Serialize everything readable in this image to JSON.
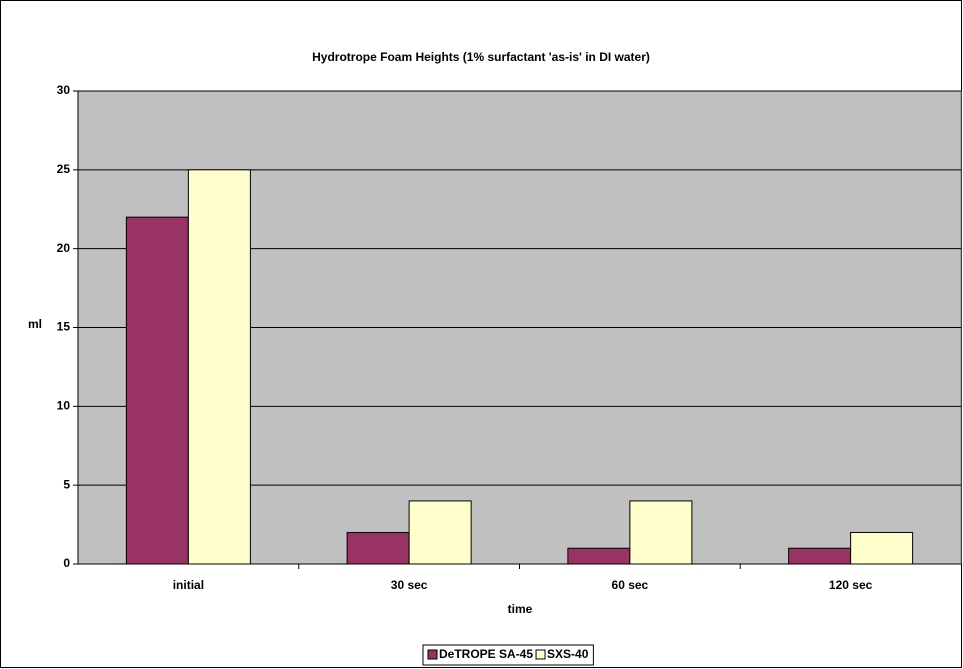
{
  "chart_data": {
    "type": "bar",
    "title": "Hydrotrope Foam Heights (1% surfactant 'as-is' in DI water)",
    "x_label": "time",
    "y_label": "ml",
    "categories": [
      "initial",
      "30 sec",
      "60 sec",
      "120 sec"
    ],
    "series": [
      {
        "name": "DeTROPE SA-45",
        "color": "#993366",
        "values": [
          22,
          2,
          1,
          1
        ]
      },
      {
        "name": "SXS-40",
        "color": "#ffffcc",
        "values": [
          25,
          4,
          4,
          2
        ]
      }
    ],
    "ylim": [
      0,
      30
    ],
    "yticks": [
      0,
      5,
      10,
      15,
      20,
      25,
      30
    ],
    "grid": true,
    "legend": "bottom"
  }
}
